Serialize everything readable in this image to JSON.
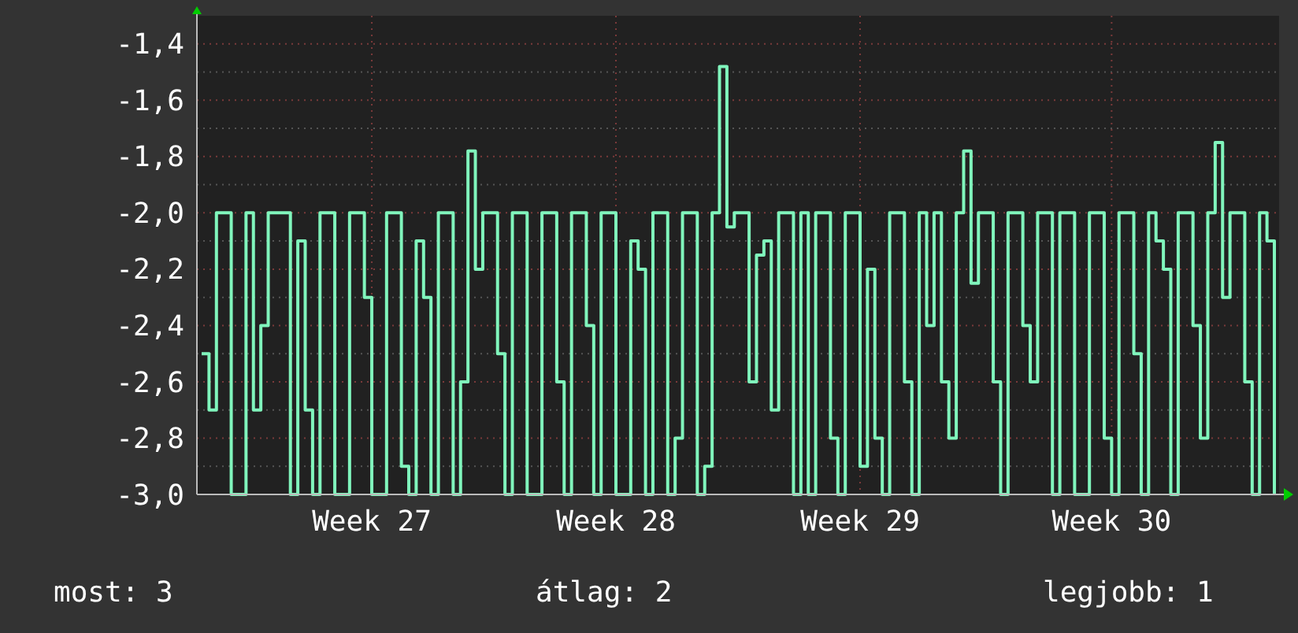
{
  "chart_data": {
    "type": "step",
    "ylim": [
      -3.0,
      -1.3
    ],
    "categories": [
      null,
      null,
      null,
      null,
      null,
      null,
      null,
      null,
      null,
      null,
      null,
      null,
      null,
      null,
      null,
      null,
      null,
      null,
      null,
      null,
      null,
      null,
      null,
      "Week 27",
      null,
      null,
      null,
      null,
      null,
      null,
      null,
      null,
      null,
      null,
      null,
      null,
      null,
      null,
      null,
      null,
      null,
      null,
      null,
      null,
      null,
      null,
      null,
      null,
      null,
      null,
      null,
      null,
      null,
      null,
      null,
      null,
      "Week 28",
      null,
      null,
      null,
      null,
      null,
      null,
      null,
      null,
      null,
      null,
      null,
      null,
      null,
      null,
      null,
      null,
      null,
      null,
      null,
      null,
      null,
      null,
      null,
      null,
      null,
      null,
      null,
      null,
      null,
      null,
      null,
      null,
      "Week 29",
      null,
      null,
      null,
      null,
      null,
      null,
      null,
      null,
      null,
      null,
      null,
      null,
      null,
      null,
      null,
      null,
      null,
      null,
      null,
      null,
      null,
      null,
      null,
      null,
      null,
      null,
      null,
      null,
      null,
      null,
      null,
      null,
      null,
      "Week 30",
      null,
      null,
      null,
      null,
      null,
      null,
      null,
      null,
      null,
      null,
      null,
      null,
      null,
      null,
      null,
      null,
      null,
      null,
      null,
      null,
      null,
      null
    ],
    "yticks": [
      {
        "value": -3.0,
        "label": "-3,0"
      },
      {
        "value": -2.8,
        "label": "-2,8"
      },
      {
        "value": -2.6,
        "label": "-2,6"
      },
      {
        "value": -2.4,
        "label": "-2,4"
      },
      {
        "value": -2.2,
        "label": "-2,2"
      },
      {
        "value": -2.0,
        "label": "-2,0"
      },
      {
        "value": -1.8,
        "label": "-1,8"
      },
      {
        "value": -1.6,
        "label": "-1,6"
      },
      {
        "value": -1.4,
        "label": "-1,4"
      }
    ],
    "grid": true,
    "series": [
      {
        "color": "#80f5bc",
        "values": [
          -2.5,
          -2.7,
          -2.0,
          -2.0,
          -3.0,
          -3.0,
          -2.0,
          -2.7,
          -2.4,
          -2.0,
          -2.0,
          -2.0,
          -3.0,
          -2.1,
          -2.7,
          -3.0,
          -2.0,
          -2.0,
          -3.0,
          -3.0,
          -2.0,
          -2.0,
          -2.3,
          -3.0,
          -3.0,
          -2.0,
          -2.0,
          -2.9,
          -3.0,
          -2.1,
          -2.3,
          -3.0,
          -2.0,
          -2.0,
          -3.0,
          -2.6,
          -1.78,
          -2.2,
          -2.0,
          -2.0,
          -2.5,
          -3.0,
          -2.0,
          -2.0,
          -3.0,
          -3.0,
          -2.0,
          -2.0,
          -2.6,
          -3.0,
          -2.0,
          -2.0,
          -2.4,
          -3.0,
          -2.0,
          -2.0,
          -3.0,
          -3.0,
          -2.1,
          -2.2,
          -3.0,
          -2.0,
          -2.0,
          -3.0,
          -2.8,
          -2.0,
          -2.0,
          -3.0,
          -2.9,
          -2.0,
          -1.48,
          -2.05,
          -2.0,
          -2.0,
          -2.6,
          -2.15,
          -2.1,
          -2.7,
          -2.0,
          -2.0,
          -3.0,
          -2.0,
          -3.0,
          -2.0,
          -2.0,
          -2.8,
          -3.0,
          -2.0,
          -2.0,
          -2.9,
          -2.2,
          -2.8,
          -3.0,
          -2.0,
          -2.0,
          -2.6,
          -3.0,
          -2.0,
          -2.4,
          -2.0,
          -2.6,
          -2.8,
          -2.0,
          -1.78,
          -2.25,
          -2.0,
          -2.0,
          -2.6,
          -3.0,
          -2.0,
          -2.0,
          -2.4,
          -2.6,
          -2.0,
          -2.0,
          -3.0,
          -2.0,
          -2.0,
          -3.0,
          -3.0,
          -2.0,
          -2.0,
          -2.8,
          -3.0,
          -2.0,
          -2.0,
          -2.5,
          -3.0,
          -2.0,
          -2.1,
          -2.2,
          -3.0,
          -2.0,
          -2.0,
          -2.4,
          -2.8,
          -2.0,
          -1.75,
          -2.3,
          -2.0,
          -2.0,
          -2.6,
          -3.0,
          -2.0,
          -2.1,
          -3.0
        ]
      }
    ],
    "annotations": [
      "most: 3",
      "átlag: 2",
      "legjobb: 1"
    ]
  }
}
